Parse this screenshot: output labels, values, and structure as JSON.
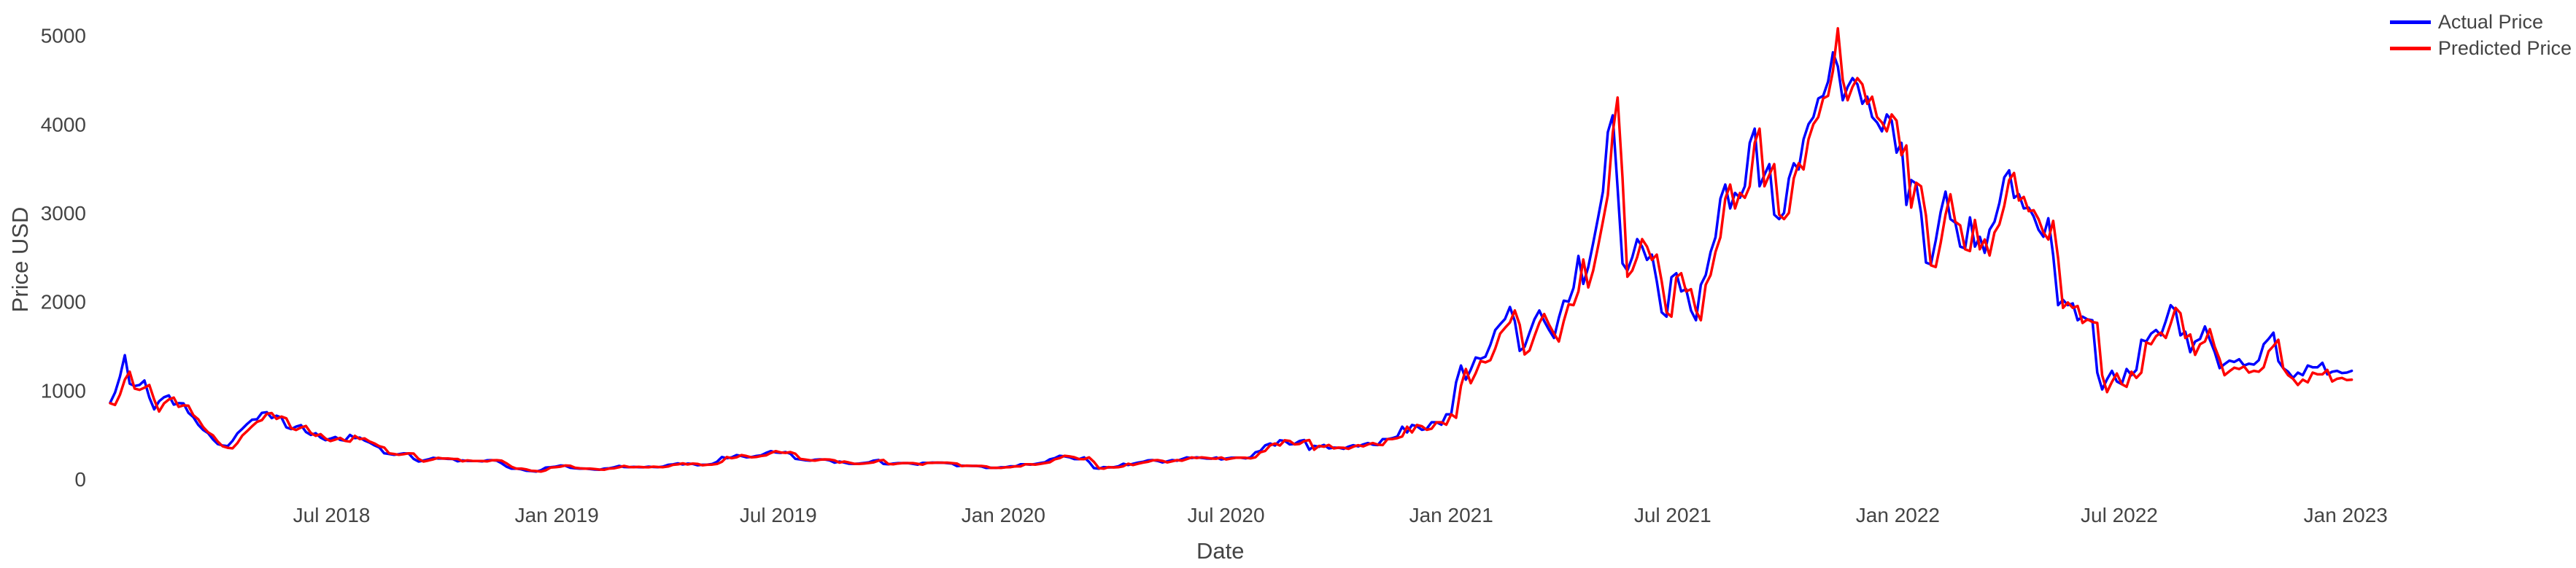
{
  "chart_data": {
    "type": "line",
    "title": "",
    "x_axis_title": "Date",
    "y_axis_title": "Price USD",
    "x_unit": "days_since_2018-01-01",
    "day_step": 4,
    "x_range_days": [
      0,
      1832
    ],
    "y_range": [
      0,
      5000
    ],
    "grid": false,
    "axis_lines": false,
    "legend_position": "top-right",
    "label_color": "#444444",
    "background_color": "#ffffff",
    "x_ticks": [
      {
        "label": "Jul 2018",
        "day": 181
      },
      {
        "label": "Jan 2019",
        "day": 365
      },
      {
        "label": "Jul 2019",
        "day": 546
      },
      {
        "label": "Jan 2020",
        "day": 730
      },
      {
        "label": "Jul 2020",
        "day": 912
      },
      {
        "label": "Jan 2021",
        "day": 1096
      },
      {
        "label": "Jul 2021",
        "day": 1277
      },
      {
        "label": "Jan 2022",
        "day": 1461
      },
      {
        "label": "Jul 2022",
        "day": 1642
      },
      {
        "label": "Jan 2023",
        "day": 1827
      }
    ],
    "y_ticks": [
      {
        "label": "0",
        "value": 0
      },
      {
        "label": "1000",
        "value": 1000
      },
      {
        "label": "2000",
        "value": 2000
      },
      {
        "label": "3000",
        "value": 3000
      },
      {
        "label": "4000",
        "value": 4000
      },
      {
        "label": "5000",
        "value": 5000
      }
    ],
    "series": [
      {
        "name": "Actual Price",
        "color": "#0000ff",
        "values": [
          860,
          975,
          1155,
          1396,
          1075,
          1049,
          1061,
          1111,
          919,
          786,
          877,
          922,
          943,
          839,
          856,
          852,
          746,
          698,
          611,
          553,
          518,
          447,
          394,
          378,
          371,
          430,
          515,
          566,
          621,
          669,
          674,
          746,
          754,
          687,
          714,
          694,
          583,
          563,
          591,
          608,
          530,
          497,
          516,
          467,
          438,
          455,
          474,
          441,
          432,
          497,
          461,
          468,
          433,
          411,
          380,
          355,
          290,
          283,
          273,
          280,
          290,
          288,
          228,
          197,
          209,
          222,
          239,
          231,
          233,
          227,
          226,
          200,
          210,
          205,
          204,
          203,
          199,
          211,
          213,
          207,
          177,
          139,
          117,
          118,
          109,
          94,
          90,
          84,
          99,
          130,
          133,
          140,
          153,
          150,
          127,
          121,
          117,
          118,
          113,
          107,
          105,
          118,
          122,
          133,
          148,
          136,
          133,
          137,
          133,
          132,
          140,
          136,
          134,
          141,
          160,
          165,
          177,
          164,
          174,
          171,
          155,
          161,
          163,
          170,
          195,
          248,
          235,
          245,
          270,
          260,
          245,
          248,
          260,
          267,
          294,
          315,
          300,
          295,
          304,
          285,
          228,
          220,
          212,
          207,
          218,
          222,
          220,
          210,
          185,
          197,
          186,
          173,
          171,
          174,
          181,
          188,
          208,
          215,
          170,
          166,
          175,
          180,
          180,
          180,
          172,
          162,
          183,
          182,
          186,
          184,
          185,
          180,
          175,
          146,
          151,
          149,
          148,
          148,
          142,
          125,
          127,
          125,
          132,
          134,
          144,
          143,
          166,
          167,
          162,
          170,
          180,
          189,
          223,
          236,
          262,
          256,
          246,
          225,
          224,
          244,
          194,
          123,
          117,
          135,
          131,
          133,
          144,
          173,
          158,
          172,
          185,
          194,
          210,
          214,
          205,
          187,
          200,
          214,
          206,
          225,
          244,
          237,
          245,
          238,
          231,
          229,
          243,
          221,
          231,
          240,
          242,
          240,
          233,
          245,
          302,
          317,
          380,
          400,
          378,
          437,
          430,
          390,
          395,
          428,
          440,
          330,
          374,
          364,
          385,
          345,
          354,
          353,
          340,
          365,
          381,
          368,
          390,
          406,
          387,
          383,
          450,
          450,
          461,
          480,
          590,
          525,
          610,
          595,
          555,
          568,
          640,
          640,
          612,
          730,
          730,
          1090,
          1280,
          1120,
          1233,
          1370,
          1355,
          1380,
          1512,
          1680,
          1745,
          1805,
          1940,
          1780,
          1445,
          1490,
          1650,
          1800,
          1900,
          1780,
          1680,
          1590,
          1820,
          2010,
          2000,
          2155,
          2515,
          2200,
          2390,
          2660,
          2945,
          3240,
          3910,
          4100,
          3280,
          2430,
          2350,
          2500,
          2705,
          2620,
          2470,
          2530,
          2230,
          1880,
          1830,
          2275,
          2320,
          2115,
          2140,
          1900,
          1790,
          2190,
          2300,
          2560,
          2725,
          3160,
          3320,
          3050,
          3225,
          3170,
          3300,
          3790,
          3950,
          3300,
          3430,
          3550,
          2980,
          2930,
          3000,
          3390,
          3560,
          3490,
          3830,
          4000,
          4080,
          4290,
          4320,
          4480,
          4810,
          4650,
          4270,
          4420,
          4520,
          4450,
          4230,
          4310,
          4080,
          4020,
          3920,
          4110,
          4040,
          3680,
          3790,
          3090,
          3370,
          3330,
          3000,
          2440,
          2420,
          2690,
          3010,
          3240,
          2930,
          2890,
          2620,
          2600,
          2950,
          2620,
          2730,
          2550,
          2810,
          2900,
          3110,
          3400,
          3480,
          3170,
          3210,
          3050,
          3060,
          2960,
          2810,
          2730,
          2940,
          2520,
          1960,
          2020,
          1960,
          1980,
          1790,
          1830,
          1800,
          1790,
          1200,
          1010,
          1125,
          1220,
          1100,
          1070,
          1240,
          1170,
          1230,
          1570,
          1550,
          1640,
          1680,
          1620,
          1780,
          1960,
          1900,
          1620,
          1660,
          1430,
          1550,
          1580,
          1720,
          1570,
          1430,
          1250,
          1295,
          1335,
          1320,
          1350,
          1280,
          1300,
          1290,
          1340,
          1520,
          1580,
          1650,
          1330,
          1250,
          1210,
          1140,
          1200,
          1170,
          1280,
          1260,
          1260,
          1310,
          1180,
          1210,
          1220,
          1195,
          1200,
          1220
        ]
      },
      {
        "name": "Predicted Price",
        "color": "#ff0000",
        "values": [
          855,
          835,
          950,
          1120,
          1210,
          1020,
          1005,
          1030,
          1060,
          894,
          761,
          852,
          897,
          918,
          814,
          831,
          827,
          721,
          673,
          586,
          528,
          493,
          422,
          369,
          353,
          346,
          405,
          490,
          541,
          596,
          644,
          664,
          736,
          744,
          677,
          704,
          684,
          573,
          553,
          581,
          598,
          520,
          487,
          506,
          457,
          428,
          445,
          464,
          431,
          422,
          487,
          451,
          458,
          423,
          401,
          370,
          355,
          290,
          283,
          273,
          280,
          290,
          288,
          228,
          197,
          209,
          222,
          239,
          231,
          233,
          227,
          226,
          200,
          210,
          205,
          204,
          203,
          199,
          211,
          213,
          207,
          177,
          139,
          117,
          118,
          109,
          94,
          90,
          84,
          99,
          130,
          133,
          140,
          153,
          150,
          127,
          121,
          117,
          118,
          113,
          107,
          105,
          118,
          122,
          133,
          148,
          136,
          133,
          137,
          133,
          132,
          140,
          136,
          134,
          141,
          160,
          165,
          177,
          164,
          174,
          171,
          155,
          161,
          163,
          170,
          195,
          248,
          235,
          245,
          270,
          260,
          245,
          248,
          260,
          267,
          294,
          315,
          300,
          295,
          304,
          285,
          228,
          220,
          212,
          207,
          218,
          222,
          220,
          210,
          185,
          197,
          186,
          173,
          171,
          174,
          181,
          188,
          208,
          215,
          170,
          166,
          175,
          180,
          180,
          180,
          172,
          162,
          183,
          182,
          186,
          184,
          185,
          180,
          175,
          146,
          151,
          149,
          148,
          148,
          142,
          125,
          127,
          125,
          132,
          134,
          144,
          143,
          166,
          167,
          162,
          170,
          180,
          189,
          223,
          236,
          262,
          256,
          246,
          225,
          224,
          244,
          194,
          123,
          117,
          135,
          131,
          133,
          144,
          173,
          158,
          172,
          185,
          194,
          210,
          214,
          205,
          187,
          200,
          214,
          206,
          225,
          244,
          237,
          245,
          238,
          231,
          229,
          243,
          221,
          231,
          240,
          242,
          240,
          233,
          245,
          302,
          317,
          380,
          400,
          378,
          437,
          430,
          390,
          395,
          428,
          440,
          330,
          374,
          364,
          385,
          345,
          354,
          353,
          340,
          365,
          381,
          368,
          390,
          406,
          387,
          383,
          450,
          450,
          461,
          480,
          590,
          525,
          610,
          595,
          555,
          568,
          640,
          640,
          612,
          730,
          690,
          1050,
          1240,
          1080,
          1193,
          1330,
          1315,
          1340,
          1472,
          1640,
          1705,
          1765,
          1900,
          1740,
          1405,
          1450,
          1610,
          1760,
          1860,
          1740,
          1640,
          1550,
          1780,
          1970,
          1960,
          2115,
          2475,
          2160,
          2350,
          2620,
          2905,
          3200,
          3900,
          4300,
          3400,
          2280,
          2350,
          2500,
          2705,
          2620,
          2470,
          2530,
          2230,
          1880,
          1830,
          2275,
          2320,
          2115,
          2140,
          1900,
          1790,
          2190,
          2300,
          2560,
          2725,
          3160,
          3320,
          3050,
          3225,
          3170,
          3300,
          3790,
          3950,
          3300,
          3430,
          3550,
          2980,
          2930,
          3000,
          3390,
          3560,
          3490,
          3830,
          4000,
          4080,
          4290,
          4320,
          4600,
          5080,
          4500,
          4270,
          4420,
          4520,
          4450,
          4230,
          4310,
          4080,
          4020,
          3920,
          4110,
          4040,
          3650,
          3760,
          3060,
          3340,
          3300,
          2970,
          2410,
          2390,
          2660,
          2980,
          3210,
          2900,
          2860,
          2590,
          2570,
          2920,
          2590,
          2700,
          2520,
          2780,
          2870,
          3080,
          3370,
          3450,
          3140,
          3180,
          3020,
          3030,
          2930,
          2780,
          2700,
          2910,
          2490,
          1930,
          1990,
          1930,
          1950,
          1760,
          1800,
          1770,
          1760,
          1170,
          980,
          1095,
          1190,
          1070,
          1040,
          1210,
          1140,
          1200,
          1540,
          1520,
          1610,
          1650,
          1590,
          1750,
          1930,
          1870,
          1590,
          1630,
          1400,
          1520,
          1550,
          1690,
          1490,
          1350,
          1170,
          1215,
          1255,
          1240,
          1270,
          1200,
          1220,
          1210,
          1260,
          1440,
          1500,
          1570,
          1250,
          1170,
          1130,
          1060,
          1120,
          1090,
          1200,
          1180,
          1180,
          1230,
          1100,
          1130,
          1140,
          1115,
          1120
        ]
      }
    ]
  }
}
